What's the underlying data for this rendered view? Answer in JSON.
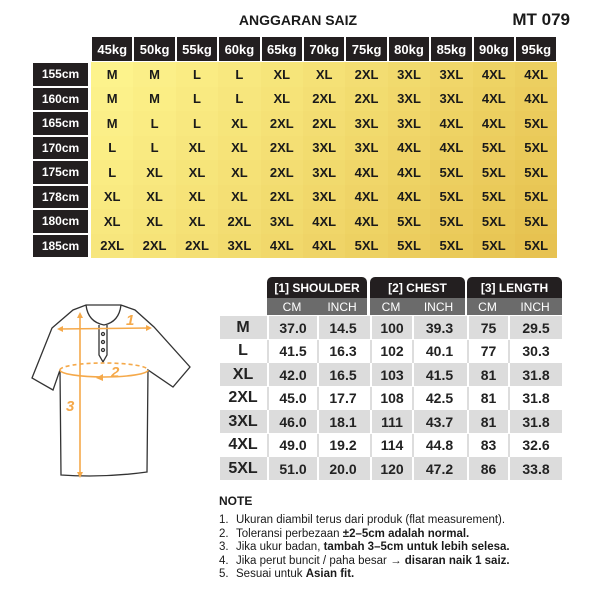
{
  "title": "ANGGARAN SAIZ",
  "model_code": "MT 079",
  "size_estimate": {
    "weights": [
      "45kg",
      "50kg",
      "55kg",
      "60kg",
      "65kg",
      "70kg",
      "75kg",
      "80kg",
      "85kg",
      "90kg",
      "95kg"
    ],
    "heights": [
      "155cm",
      "160cm",
      "165cm",
      "170cm",
      "175cm",
      "178cm",
      "180cm",
      "185cm"
    ],
    "rows": [
      [
        "M",
        "M",
        "L",
        "L",
        "XL",
        "XL",
        "2XL",
        "3XL",
        "3XL",
        "4XL",
        "4XL"
      ],
      [
        "M",
        "M",
        "L",
        "L",
        "XL",
        "2XL",
        "2XL",
        "3XL",
        "3XL",
        "4XL",
        "4XL"
      ],
      [
        "M",
        "L",
        "L",
        "XL",
        "2XL",
        "2XL",
        "3XL",
        "3XL",
        "4XL",
        "4XL",
        "5XL"
      ],
      [
        "L",
        "L",
        "XL",
        "XL",
        "2XL",
        "3XL",
        "3XL",
        "4XL",
        "4XL",
        "5XL",
        "5XL"
      ],
      [
        "L",
        "XL",
        "XL",
        "XL",
        "2XL",
        "3XL",
        "4XL",
        "4XL",
        "5XL",
        "5XL",
        "5XL"
      ],
      [
        "XL",
        "XL",
        "XL",
        "XL",
        "2XL",
        "3XL",
        "4XL",
        "4XL",
        "5XL",
        "5XL",
        "5XL"
      ],
      [
        "XL",
        "XL",
        "XL",
        "2XL",
        "3XL",
        "4XL",
        "4XL",
        "5XL",
        "5XL",
        "5XL",
        "5XL"
      ],
      [
        "2XL",
        "2XL",
        "2XL",
        "3XL",
        "4XL",
        "4XL",
        "5XL",
        "5XL",
        "5XL",
        "5XL",
        "5XL"
      ]
    ],
    "color_light": "#fdf38c",
    "color_dark": "#e6c14f"
  },
  "measurements": {
    "groups": [
      "[1] SHOULDER",
      "[2] CHEST",
      "[3] LENGTH"
    ],
    "units": [
      "CM",
      "INCH",
      "CM",
      "INCH",
      "CM",
      "INCH"
    ],
    "rows": [
      {
        "size": "M",
        "values": [
          "37.0",
          "14.5",
          "100",
          "39.3",
          "75",
          "29.5"
        ]
      },
      {
        "size": "L",
        "values": [
          "41.5",
          "16.3",
          "102",
          "40.1",
          "77",
          "30.3"
        ]
      },
      {
        "size": "XL",
        "values": [
          "42.0",
          "16.5",
          "103",
          "41.5",
          "81",
          "31.8"
        ]
      },
      {
        "size": "2XL",
        "values": [
          "45.0",
          "17.7",
          "108",
          "42.5",
          "81",
          "31.8"
        ]
      },
      {
        "size": "3XL",
        "values": [
          "46.0",
          "18.1",
          "111",
          "43.7",
          "81",
          "31.8"
        ]
      },
      {
        "size": "4XL",
        "values": [
          "49.0",
          "19.2",
          "114",
          "44.8",
          "83",
          "32.6"
        ]
      },
      {
        "size": "5XL",
        "values": [
          "51.0",
          "20.0",
          "120",
          "47.2",
          "86",
          "33.8"
        ]
      }
    ]
  },
  "diagram": {
    "labels": [
      "1",
      "2",
      "3"
    ],
    "accent": "#f5a94a"
  },
  "note": {
    "heading": "NOTE",
    "items": [
      {
        "num": "1.",
        "text": "Ukuran diambil terus dari produk (flat measurement).",
        "bold": ""
      },
      {
        "num": "2.",
        "text": "Toleransi perbezaan ",
        "bold": "±2–5cm adalah normal."
      },
      {
        "num": "3.",
        "text": "Jika ukur badan, ",
        "bold": "tambah 3–5cm untuk lebih selesa."
      },
      {
        "num": "4.",
        "text": "Jika perut buncit / paha besar → ",
        "bold": "disaran naik 1 saiz."
      },
      {
        "num": "5.",
        "text": "Sesuai untuk ",
        "bold": "Asian fit."
      }
    ]
  }
}
